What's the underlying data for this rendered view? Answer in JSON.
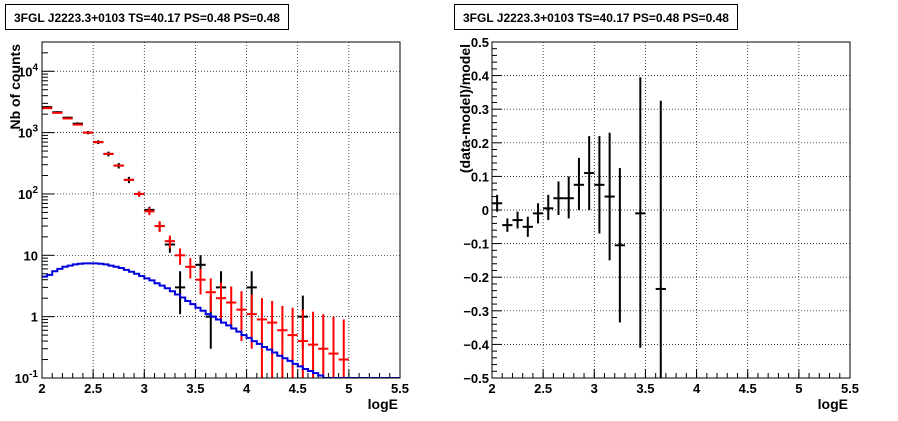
{
  "chart_data": [
    {
      "type": "line",
      "title": "3FGL J2223.3+0103 TS=40.17 PS=0.48 PS=0.48",
      "xlabel": "logE",
      "ylabel": "Nb of counts",
      "xlim": [
        2,
        5.5
      ],
      "ylim": [
        0.1,
        30000
      ],
      "yscale": "log",
      "grid": true,
      "x_ticks": [
        "2",
        "2.5",
        "3",
        "3.5",
        "4",
        "4.5",
        "5",
        "5.5"
      ],
      "y_ticks": [
        "10⁻¹",
        "1",
        "10",
        "10²",
        "10³",
        "10⁴"
      ],
      "series": [
        {
          "role": "data",
          "color": "#000000",
          "points": [
            {
              "x": 2.05,
              "y": 2600,
              "lo": 2500,
              "hi": 2700
            },
            {
              "x": 2.15,
              "y": 2150,
              "lo": 2060,
              "hi": 2240
            },
            {
              "x": 2.25,
              "y": 1750,
              "lo": 1670,
              "hi": 1830
            },
            {
              "x": 2.35,
              "y": 1400,
              "lo": 1330,
              "hi": 1470
            },
            {
              "x": 2.45,
              "y": 1000,
              "lo": 940,
              "hi": 1060
            },
            {
              "x": 2.55,
              "y": 700,
              "lo": 650,
              "hi": 750
            },
            {
              "x": 2.65,
              "y": 450,
              "lo": 410,
              "hi": 490
            },
            {
              "x": 2.75,
              "y": 290,
              "lo": 260,
              "hi": 320
            },
            {
              "x": 2.85,
              "y": 170,
              "lo": 150,
              "hi": 190
            },
            {
              "x": 2.95,
              "y": 100,
              "lo": 90,
              "hi": 110
            },
            {
              "x": 3.05,
              "y": 55,
              "lo": 48,
              "hi": 62
            },
            {
              "x": 3.15,
              "y": 30,
              "lo": 25,
              "hi": 35
            },
            {
              "x": 3.25,
              "y": 15,
              "lo": 11,
              "hi": 19
            },
            {
              "x": 3.35,
              "y": 3,
              "lo": 1.1,
              "hi": 5.5
            },
            {
              "x": 3.55,
              "y": 7,
              "lo": 4.5,
              "hi": 10
            },
            {
              "x": 3.65,
              "y": 1,
              "lo": 0.3,
              "hi": 2.2
            },
            {
              "x": 3.75,
              "y": 3,
              "lo": 1.1,
              "hi": 5.5
            },
            {
              "x": 4.05,
              "y": 3,
              "lo": 1.1,
              "hi": 5.5
            },
            {
              "x": 4.55,
              "y": 1,
              "lo": 0.3,
              "hi": 2.2
            }
          ]
        },
        {
          "role": "model total",
          "color": "#ff0000",
          "points": [
            {
              "x": 2.05,
              "y": 2500
            },
            {
              "x": 2.15,
              "y": 2100
            },
            {
              "x": 2.25,
              "y": 1700
            },
            {
              "x": 2.35,
              "y": 1350
            },
            {
              "x": 2.45,
              "y": 1000
            },
            {
              "x": 2.55,
              "y": 700
            },
            {
              "x": 2.65,
              "y": 450
            },
            {
              "x": 2.75,
              "y": 290
            },
            {
              "x": 2.85,
              "y": 170
            },
            {
              "x": 2.95,
              "y": 100,
              "lo": 90,
              "hi": 110
            },
            {
              "x": 3.05,
              "y": 52,
              "lo": 45,
              "hi": 60
            },
            {
              "x": 3.15,
              "y": 30,
              "lo": 24,
              "hi": 36
            },
            {
              "x": 3.25,
              "y": 17,
              "lo": 13,
              "hi": 21
            },
            {
              "x": 3.35,
              "y": 10,
              "lo": 7,
              "hi": 13
            },
            {
              "x": 3.45,
              "y": 6.5,
              "lo": 4.2,
              "hi": 9
            },
            {
              "x": 3.55,
              "y": 4,
              "lo": 2.3,
              "hi": 6
            },
            {
              "x": 3.65,
              "y": 2.5,
              "lo": 1.2,
              "hi": 4.2
            },
            {
              "x": 3.75,
              "y": 2,
              "lo": 0.85,
              "hi": 3.6
            },
            {
              "x": 3.85,
              "y": 1.7,
              "lo": 0.65,
              "hi": 3.1
            },
            {
              "x": 3.95,
              "y": 1.3,
              "lo": 0.4,
              "hi": 2.6
            },
            {
              "x": 4.05,
              "y": 1.1,
              "lo": 0.3,
              "hi": 2.3
            },
            {
              "x": 4.15,
              "y": 0.9,
              "lo": 0.1,
              "hi": 2.0
            },
            {
              "x": 4.25,
              "y": 0.8,
              "lo": 0.1,
              "hi": 1.8
            },
            {
              "x": 4.35,
              "y": 0.6,
              "lo": 0.1,
              "hi": 1.5
            },
            {
              "x": 4.45,
              "y": 0.5,
              "lo": 0.1,
              "hi": 1.4
            },
            {
              "x": 4.55,
              "y": 0.4,
              "lo": 0.1,
              "hi": 1.3
            },
            {
              "x": 4.65,
              "y": 0.35,
              "lo": 0.1,
              "hi": 1.2
            },
            {
              "x": 4.75,
              "y": 0.3,
              "lo": 0.1,
              "hi": 1.1
            },
            {
              "x": 4.85,
              "y": 0.25,
              "lo": 0.1,
              "hi": 1.0
            },
            {
              "x": 4.95,
              "y": 0.2,
              "lo": 0.1,
              "hi": 0.9
            }
          ]
        },
        {
          "role": "model component",
          "color": "#0000dd",
          "step": true,
          "x": [
            2.0,
            2.05,
            2.1,
            2.15,
            2.2,
            2.25,
            2.3,
            2.35,
            2.4,
            2.45,
            2.5,
            2.55,
            2.6,
            2.65,
            2.7,
            2.75,
            2.8,
            2.85,
            2.9,
            2.95,
            3.0,
            3.05,
            3.1,
            3.15,
            3.2,
            3.25,
            3.3,
            3.35,
            3.4,
            3.45,
            3.5,
            3.55,
            3.6,
            3.65,
            3.7,
            3.75,
            3.8,
            3.85,
            3.9,
            3.95,
            4.0,
            4.05,
            4.1,
            4.15,
            4.2,
            4.25,
            4.3,
            4.35,
            4.4,
            4.45,
            4.5,
            4.55,
            4.6,
            4.65,
            4.7,
            4.75,
            4.8,
            4.85,
            4.9,
            4.95,
            5.0,
            5.05,
            5.1,
            5.5
          ],
          "values": [
            4.5,
            4.8,
            5.5,
            6.0,
            6.5,
            6.8,
            7.1,
            7.3,
            7.4,
            7.4,
            7.4,
            7.3,
            7.1,
            6.8,
            6.5,
            6.2,
            5.8,
            5.4,
            5.0,
            4.6,
            4.2,
            3.9,
            3.5,
            3.2,
            2.9,
            2.6,
            2.3,
            2.05,
            1.8,
            1.6,
            1.4,
            1.25,
            1.1,
            1.0,
            0.9,
            0.8,
            0.72,
            0.64,
            0.57,
            0.5,
            0.45,
            0.4,
            0.36,
            0.32,
            0.29,
            0.26,
            0.23,
            0.21,
            0.19,
            0.17,
            0.155,
            0.14,
            0.13,
            0.12,
            0.11,
            0.1,
            0.1,
            0.1,
            0.1,
            0.1,
            0.1,
            0.1,
            0.1,
            0.1
          ]
        }
      ]
    },
    {
      "type": "scatter",
      "title": "3FGL J2223.3+0103 TS=40.17 PS=0.48 PS=0.48",
      "xlabel": "logE",
      "ylabel": "(data-model)/model",
      "xlim": [
        2,
        5.5
      ],
      "ylim": [
        -0.5,
        0.5
      ],
      "grid": true,
      "x_ticks": [
        "2",
        "2.5",
        "3",
        "3.5",
        "4",
        "4.5",
        "5",
        "5.5"
      ],
      "y_ticks": [
        "−0.5",
        "−0.4",
        "−0.3",
        "−0.2",
        "−0.1",
        "0",
        "0.1",
        "0.2",
        "0.3",
        "0.4",
        "0.5"
      ],
      "series": [
        {
          "color": "#000000",
          "points": [
            {
              "x": 2.05,
              "y": 0.02,
              "lo": -0.005,
              "hi": 0.045
            },
            {
              "x": 2.15,
              "y": -0.045,
              "lo": -0.065,
              "hi": -0.025
            },
            {
              "x": 2.25,
              "y": -0.03,
              "lo": -0.055,
              "hi": -0.005
            },
            {
              "x": 2.35,
              "y": -0.05,
              "lo": -0.08,
              "hi": -0.02
            },
            {
              "x": 2.45,
              "y": -0.01,
              "lo": -0.04,
              "hi": 0.02
            },
            {
              "x": 2.55,
              "y": 0.005,
              "lo": -0.03,
              "hi": 0.045
            },
            {
              "x": 2.65,
              "y": 0.035,
              "lo": -0.015,
              "hi": 0.085
            },
            {
              "x": 2.75,
              "y": 0.035,
              "lo": -0.025,
              "hi": 0.1
            },
            {
              "x": 2.85,
              "y": 0.075,
              "lo": 0.0,
              "hi": 0.155
            },
            {
              "x": 2.95,
              "y": 0.11,
              "lo": 0.0,
              "hi": 0.22
            },
            {
              "x": 3.05,
              "y": 0.075,
              "lo": -0.07,
              "hi": 0.22
            },
            {
              "x": 3.15,
              "y": 0.04,
              "lo": -0.15,
              "hi": 0.23
            },
            {
              "x": 3.25,
              "y": -0.105,
              "lo": -0.335,
              "hi": 0.125
            },
            {
              "x": 3.45,
              "y": -0.01,
              "lo": -0.41,
              "hi": 0.395
            },
            {
              "x": 3.65,
              "y": -0.235,
              "lo": -0.5,
              "hi": 0.325
            }
          ]
        }
      ]
    }
  ]
}
